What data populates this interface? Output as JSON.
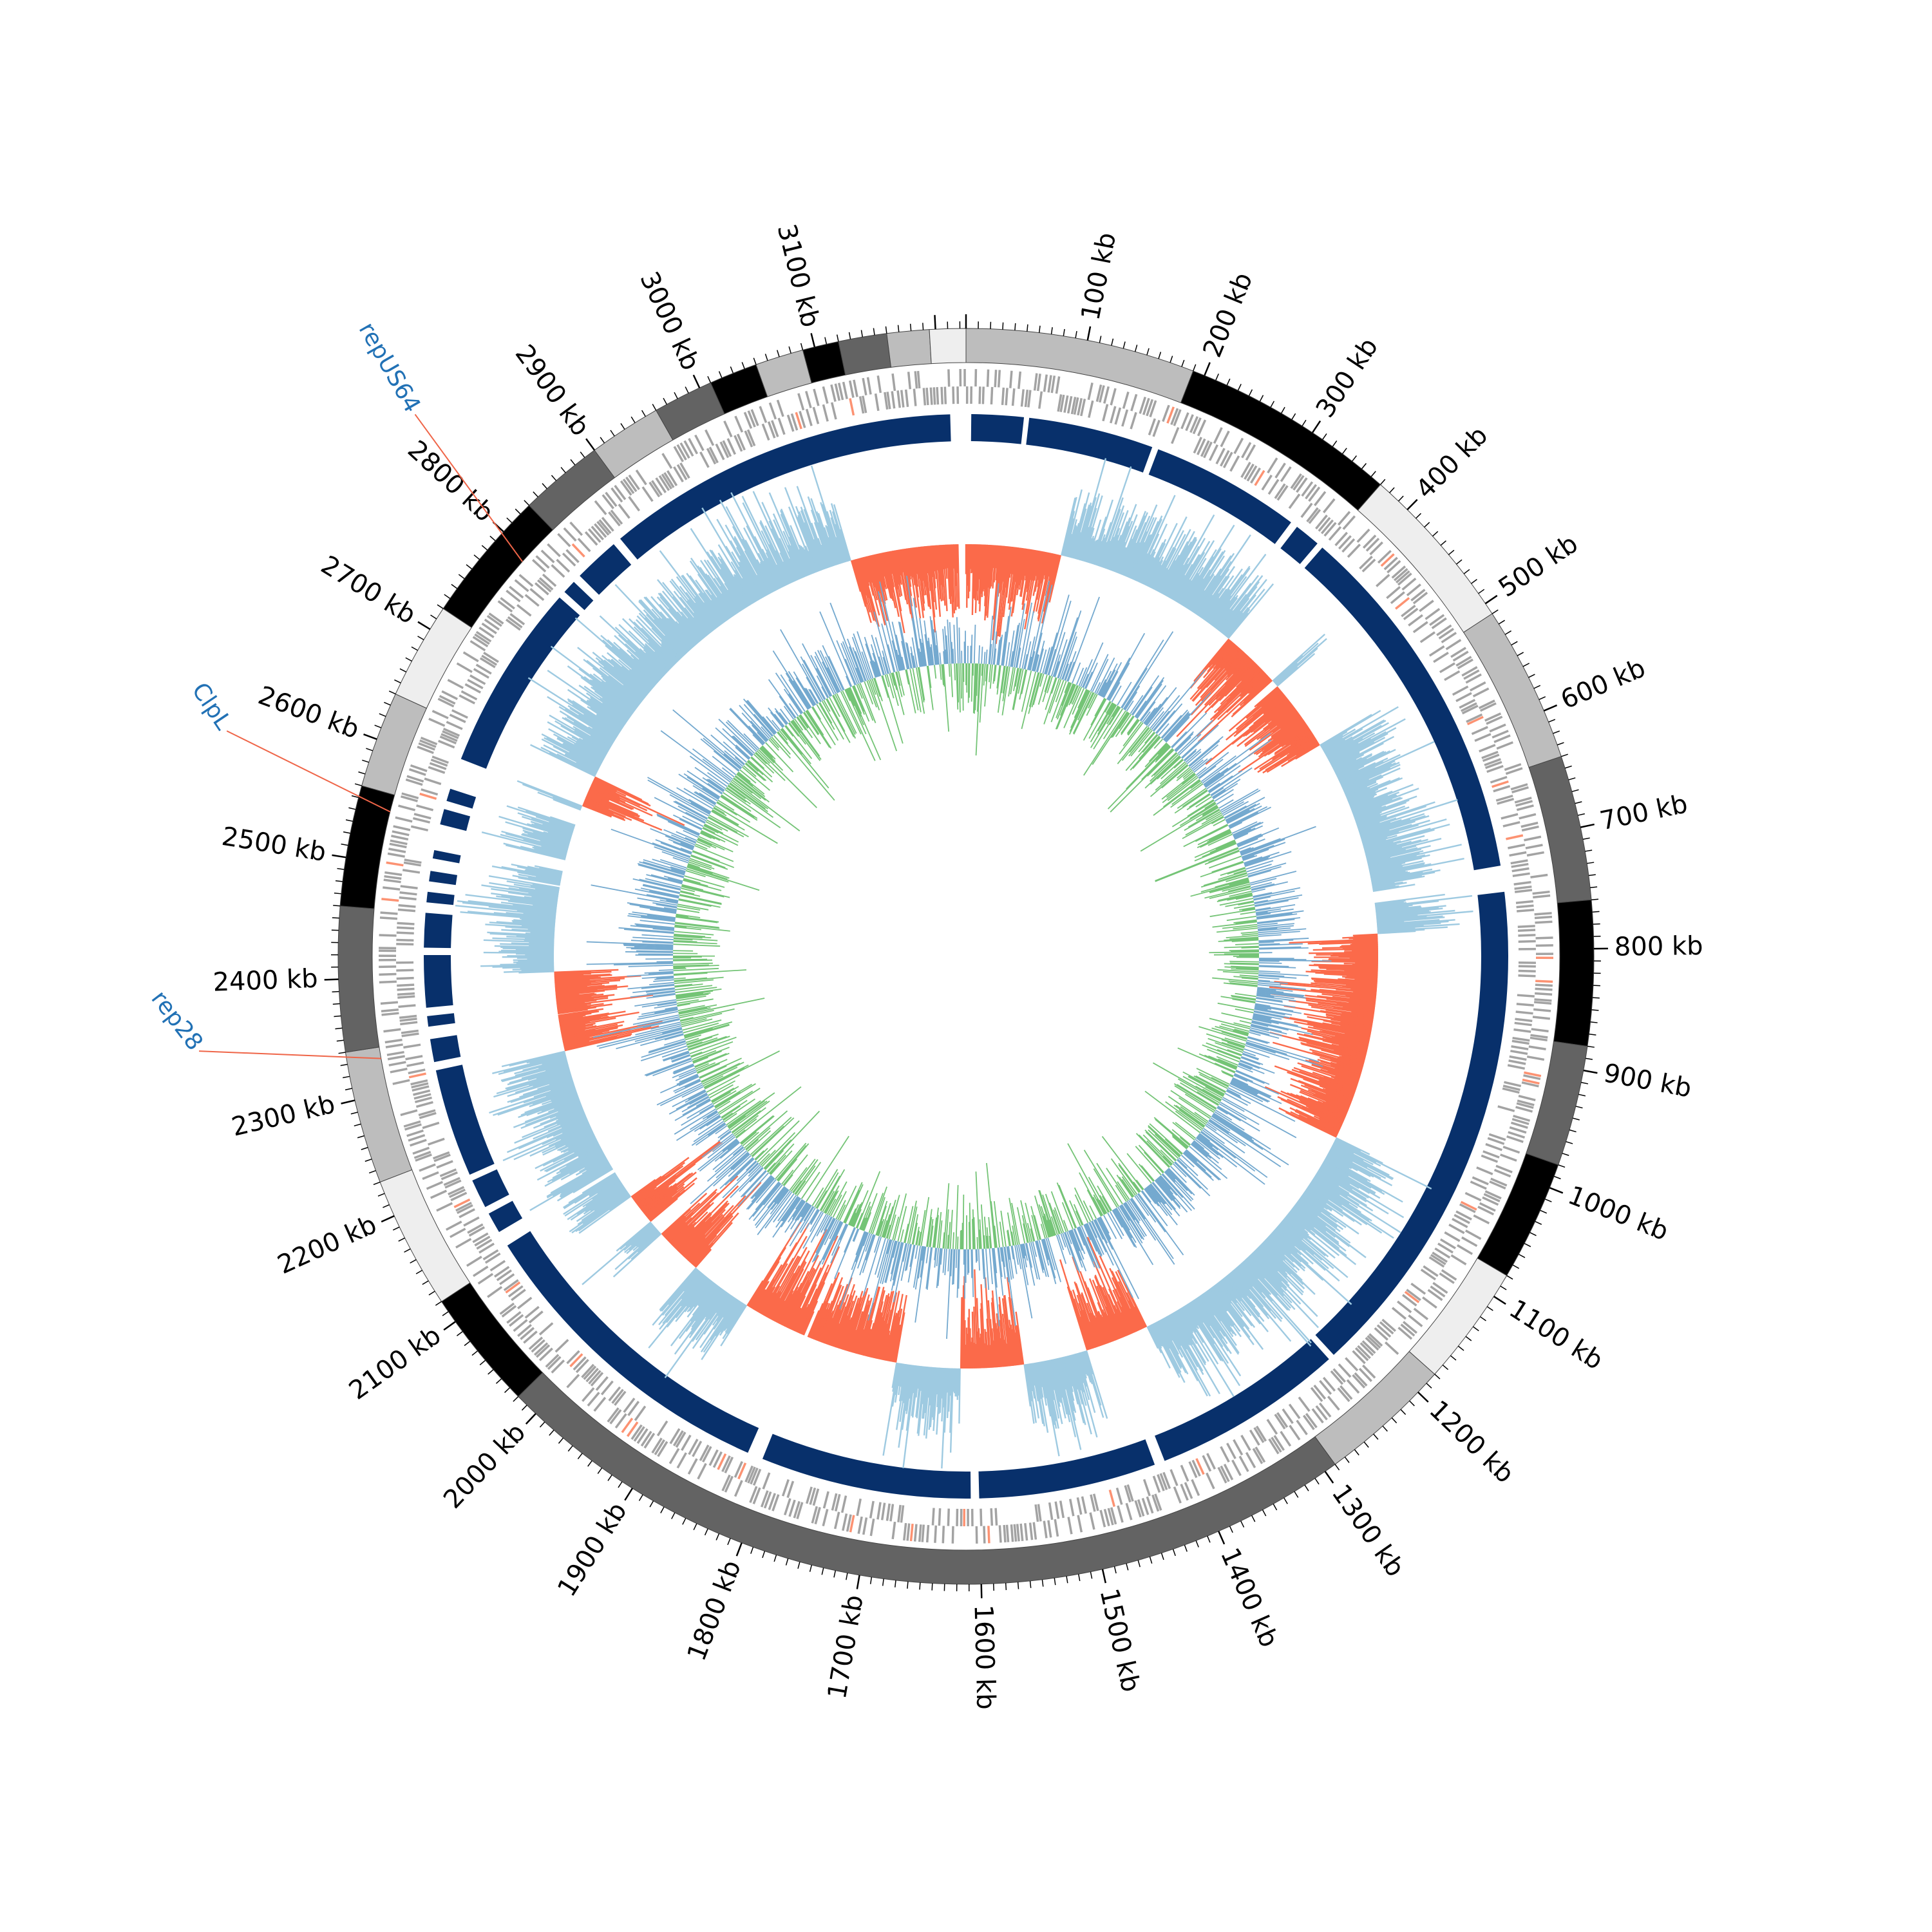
{
  "chart_data": {
    "type": "circular-genome",
    "genome_length_kb": 3225,
    "tick_labels": [
      "100 kb",
      "200 kb",
      "300 kb",
      "400 kb",
      "500 kb",
      "600 kb",
      "700 kb",
      "800 kb",
      "900 kb",
      "1000 kb",
      "1100 kb",
      "1200 kb",
      "1300 kb",
      "1400 kb",
      "1500 kb",
      "1600 kb",
      "1700 kb",
      "1800 kb",
      "1900 kb",
      "2000 kb",
      "2100 kb",
      "2200 kb",
      "2300 kb",
      "2400 kb",
      "2500 kb",
      "2600 kb",
      "2700 kb",
      "2800 kb",
      "2900 kb",
      "3000 kb",
      "3100 kb"
    ],
    "major_tick_interval_kb": 100,
    "minor_tick_interval_kb": 10,
    "contigs": [
      {
        "start": 0,
        "end": 190,
        "shade": "#bdbdbd"
      },
      {
        "start": 190,
        "end": 370,
        "shade": "#000000"
      },
      {
        "start": 370,
        "end": 510,
        "shade": "#eeeeee"
      },
      {
        "start": 510,
        "end": 640,
        "shade": "#bdbdbd"
      },
      {
        "start": 640,
        "end": 760,
        "shade": "#636363"
      },
      {
        "start": 760,
        "end": 880,
        "shade": "#000000"
      },
      {
        "start": 880,
        "end": 980,
        "shade": "#636363"
      },
      {
        "start": 980,
        "end": 1080,
        "shade": "#000000"
      },
      {
        "start": 1080,
        "end": 1180,
        "shade": "#eeeeee"
      },
      {
        "start": 1180,
        "end": 1290,
        "shade": "#bdbdbd"
      },
      {
        "start": 1290,
        "end": 2020,
        "shade": "#636363"
      },
      {
        "start": 2020,
        "end": 2120,
        "shade": "#000000"
      },
      {
        "start": 2120,
        "end": 2230,
        "shade": "#eeeeee"
      },
      {
        "start": 2230,
        "end": 2340,
        "shade": "#bdbdbd"
      },
      {
        "start": 2340,
        "end": 2460,
        "shade": "#636363"
      },
      {
        "start": 2460,
        "end": 2560,
        "shade": "#000000"
      },
      {
        "start": 2560,
        "end": 2640,
        "shade": "#bdbdbd"
      },
      {
        "start": 2640,
        "end": 2720,
        "shade": "#eeeeee"
      },
      {
        "start": 2720,
        "end": 2830,
        "shade": "#000000"
      },
      {
        "start": 2830,
        "end": 2900,
        "shade": "#636363"
      },
      {
        "start": 2900,
        "end": 2960,
        "shade": "#bdbdbd"
      },
      {
        "start": 2960,
        "end": 3010,
        "shade": "#636363"
      },
      {
        "start": 3010,
        "end": 3050,
        "shade": "#000000"
      },
      {
        "start": 3050,
        "end": 3090,
        "shade": "#bdbdbd"
      },
      {
        "start": 3090,
        "end": 3120,
        "shade": "#000000"
      },
      {
        "start": 3120,
        "end": 3160,
        "shade": "#636363"
      },
      {
        "start": 3160,
        "end": 3195,
        "shade": "#bdbdbd"
      },
      {
        "start": 3195,
        "end": 3225,
        "shade": "#eeeeee"
      }
    ],
    "similarity_blocks": [
      {
        "start": 5,
        "end": 55
      },
      {
        "start": 60,
        "end": 180
      },
      {
        "start": 186,
        "end": 330
      },
      {
        "start": 337,
        "end": 362
      },
      {
        "start": 368,
        "end": 720
      },
      {
        "start": 745,
        "end": 1230
      },
      {
        "start": 1236,
        "end": 1420
      },
      {
        "start": 1430,
        "end": 1600
      },
      {
        "start": 1608,
        "end": 1810
      },
      {
        "start": 1825,
        "end": 2130
      },
      {
        "start": 2145,
        "end": 2165
      },
      {
        "start": 2172,
        "end": 2200
      },
      {
        "start": 2206,
        "end": 2310
      },
      {
        "start": 2318,
        "end": 2340
      },
      {
        "start": 2352,
        "end": 2362
      },
      {
        "start": 2370,
        "end": 2420
      },
      {
        "start": 2427,
        "end": 2460
      },
      {
        "start": 2470,
        "end": 2480
      },
      {
        "start": 2490,
        "end": 2500
      },
      {
        "start": 2512,
        "end": 2520
      },
      {
        "start": 2545,
        "end": 2560
      },
      {
        "start": 2568,
        "end": 2580
      },
      {
        "start": 2610,
        "end": 2790
      },
      {
        "start": 2797,
        "end": 2810
      },
      {
        "start": 2818,
        "end": 2862
      },
      {
        "start": 2870,
        "end": 3210
      }
    ],
    "gc_skew_negative_regions": [
      {
        "start": 0,
        "end": 120
      },
      {
        "start": 355,
        "end": 430
      },
      {
        "start": 440,
        "end": 530
      },
      {
        "start": 778,
        "end": 1040
      },
      {
        "start": 1380,
        "end": 1460
      },
      {
        "start": 1540,
        "end": 1620
      },
      {
        "start": 1700,
        "end": 1900
      },
      {
        "start": 1980,
        "end": 2040
      },
      {
        "start": 2060,
        "end": 2100
      },
      {
        "start": 2300,
        "end": 2400
      },
      {
        "start": 2610,
        "end": 2650
      },
      {
        "start": 3080,
        "end": 3225
      }
    ],
    "markers": [
      {
        "label": "repUS64",
        "position_kb": 2792,
        "color": "#2171b5"
      },
      {
        "label": "ClpL",
        "position_kb": 2545,
        "color": "#2171b5"
      },
      {
        "label": "rep28",
        "position_kb": 2330,
        "color": "#2171b5"
      }
    ],
    "colors": {
      "contig_dark": "#000000",
      "contig_mid": "#636363",
      "contig_light": "#bdbdbd",
      "contig_lightest": "#eeeeee",
      "cds": "#a3a3a3",
      "cds_highlight": "#fc9272",
      "similarity": "#08306b",
      "skew_positive": "#9ecae1",
      "skew_negative": "#fb6a4a",
      "gc_content_1": "#74a9cf",
      "gc_content_2": "#74c476",
      "marker_line": "#ef6548",
      "marker_text": "#2171b5"
    }
  }
}
